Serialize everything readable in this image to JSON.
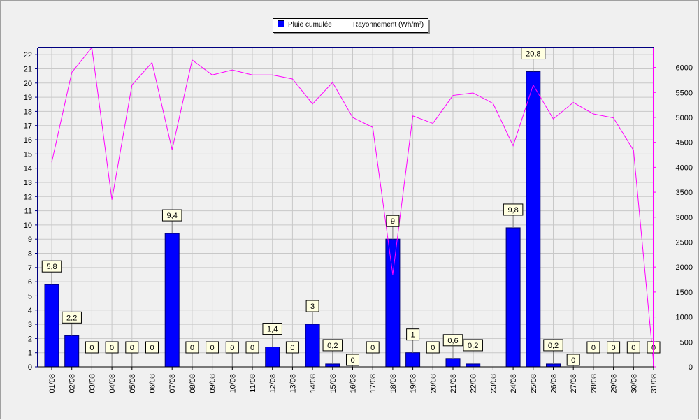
{
  "legend": {
    "rain": "Pluie cumulée",
    "radiation": "Rayonnement (Wh/m²)"
  },
  "colors": {
    "bar_fill": "#0000ff",
    "bar_edge": "#00006e",
    "line": "#ff00ff",
    "left_axis": "#000080",
    "right_axis": "#ff00ff",
    "grid": "#c8c8c8",
    "label_box": "#ffffe1"
  },
  "chart_data": {
    "type": "bar",
    "categories": [
      "01/08",
      "02/08",
      "03/08",
      "04/08",
      "05/08",
      "06/08",
      "07/08",
      "08/08",
      "09/08",
      "10/08",
      "11/08",
      "12/08",
      "13/08",
      "14/08",
      "15/08",
      "16/08",
      "17/08",
      "18/08",
      "19/08",
      "20/08",
      "21/08",
      "22/08",
      "23/08",
      "24/08",
      "25/08",
      "26/08",
      "27/08",
      "28/08",
      "29/08",
      "30/08",
      "31/08"
    ],
    "series": [
      {
        "name": "Pluie cumulée",
        "type": "bar",
        "axis": "left",
        "values": [
          5.8,
          2.2,
          0,
          0,
          0,
          0,
          9.4,
          0,
          0,
          0,
          0,
          1.4,
          0,
          3,
          0.2,
          0,
          0,
          9,
          1,
          0,
          0.6,
          0.2,
          null,
          9.8,
          20.8,
          0.2,
          0,
          0,
          0,
          0,
          0
        ],
        "labels": [
          "5,8",
          "2,2",
          "0",
          "0",
          "0",
          "0",
          "9,4",
          "0",
          "0",
          "0",
          "0",
          "1,4",
          "0",
          "3",
          "0,2",
          "0",
          "0",
          "9",
          "1",
          "0",
          "0,6",
          "0,2",
          "",
          "9,8",
          "20,8",
          "0,2",
          "0",
          "0",
          "0",
          "0",
          "0"
        ]
      },
      {
        "name": "Rayonnement (Wh/m²)",
        "type": "line",
        "axis": "right",
        "values": [
          4100,
          5900,
          6400,
          3350,
          5650,
          6100,
          4350,
          6150,
          5850,
          5950,
          5850,
          5850,
          5770,
          5270,
          5700,
          5000,
          4800,
          1850,
          5030,
          4880,
          5440,
          5490,
          5280,
          4430,
          5650,
          4970,
          5300,
          5070,
          4990,
          4340,
          80
        ]
      }
    ],
    "y_left": {
      "min": 0,
      "max": 22.5,
      "ticks": [
        0,
        1,
        2,
        3,
        4,
        5,
        6,
        7,
        8,
        9,
        10,
        11,
        12,
        13,
        14,
        15,
        16,
        17,
        18,
        19,
        20,
        21,
        22
      ]
    },
    "y_right": {
      "min": 0,
      "max": 6400,
      "ticks": [
        0,
        500,
        1000,
        1500,
        2000,
        2500,
        3000,
        3500,
        4000,
        4500,
        5000,
        5500,
        6000
      ]
    },
    "grid": true,
    "legend_position": "top-center"
  }
}
